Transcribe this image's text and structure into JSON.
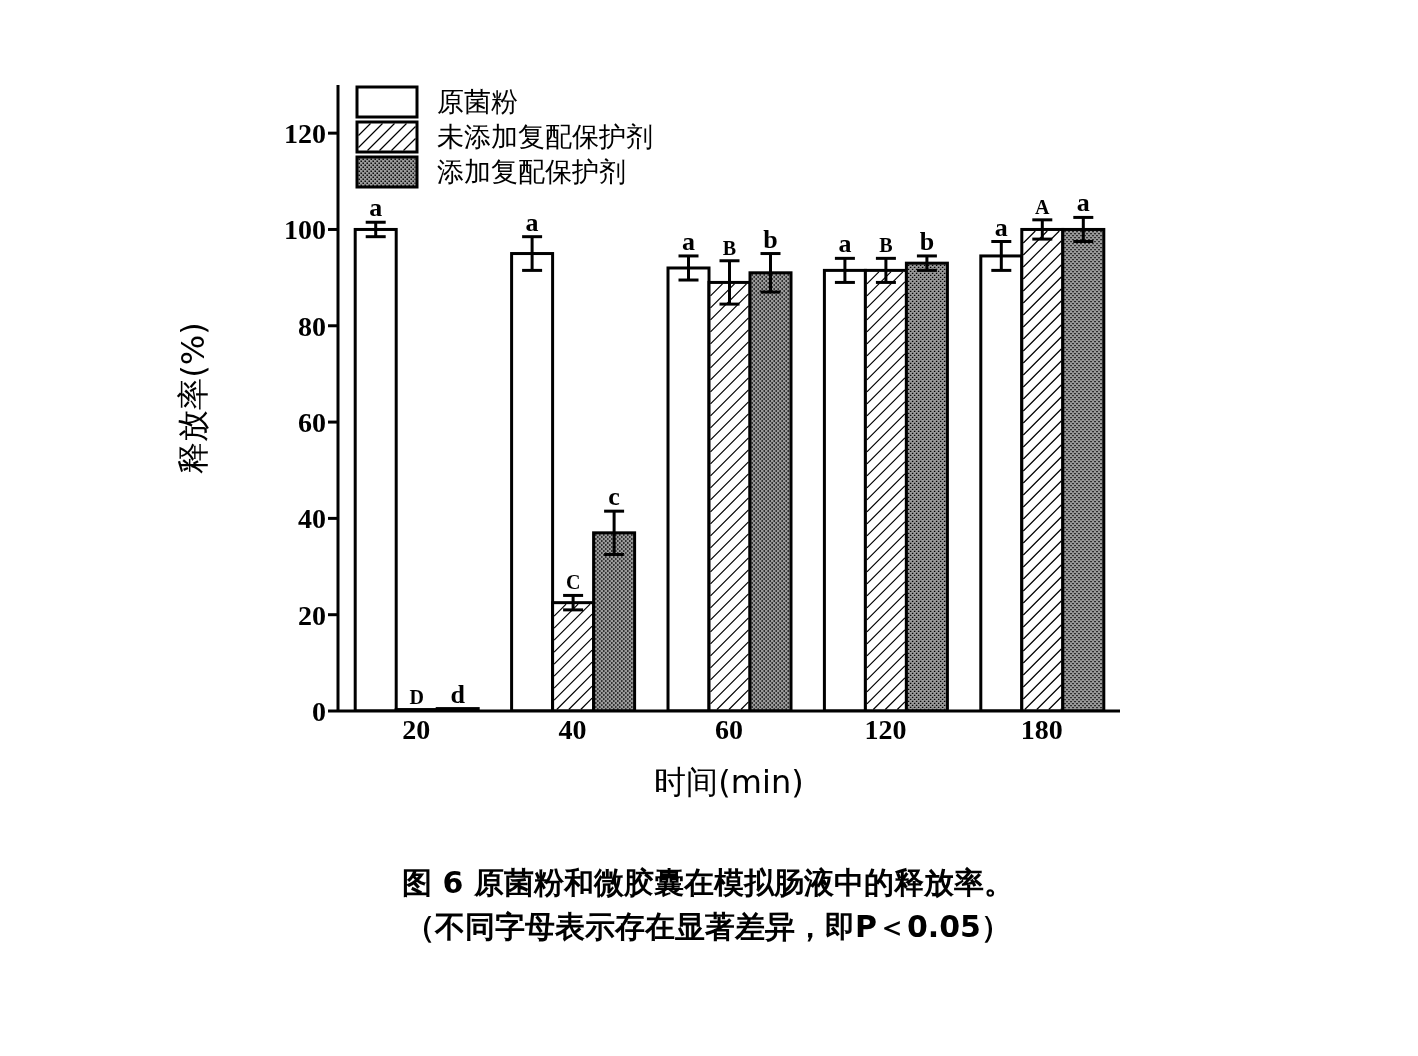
{
  "chart_data": {
    "type": "bar",
    "xlabel": "时间(min)",
    "ylabel": "释放率(%)",
    "categories": [
      "20",
      "40",
      "60",
      "120",
      "180"
    ],
    "ylim": [
      0,
      130
    ],
    "yticks": [
      0,
      20,
      40,
      60,
      80,
      100,
      120
    ],
    "grid": false,
    "legend": "top left",
    "series": [
      {
        "name": "原菌粉",
        "color": "#ffffff",
        "values": [
          100,
          95,
          92,
          91.5,
          94.5
        ],
        "errors": [
          1.5,
          3.5,
          2.5,
          2.5,
          3
        ],
        "value_labels": [
          "a",
          "a",
          "a",
          "a",
          "a"
        ]
      },
      {
        "name": "未添加复配保护剂",
        "color": "#ffffff",
        "values": [
          0.3,
          22.5,
          89,
          91.5,
          100
        ],
        "errors": [
          null,
          1.5,
          4.5,
          2.5,
          2
        ],
        "value_labels": [
          "D",
          "C",
          "B",
          "B",
          "A"
        ]
      },
      {
        "name": "添加复配保护剂",
        "color": "#9a9a9a",
        "values": [
          0.5,
          37,
          91,
          93,
          100
        ],
        "errors": [
          null,
          4.5,
          4,
          1.5,
          2.5
        ],
        "value_labels": [
          "d",
          "c",
          "b",
          "b",
          "a"
        ]
      }
    ],
    "annotations": [
      "图 6  原菌粉和微胶囊在模拟肠液中的释放率。",
      "（不同字母表示存在显著差异，即P＜0.05）"
    ]
  }
}
